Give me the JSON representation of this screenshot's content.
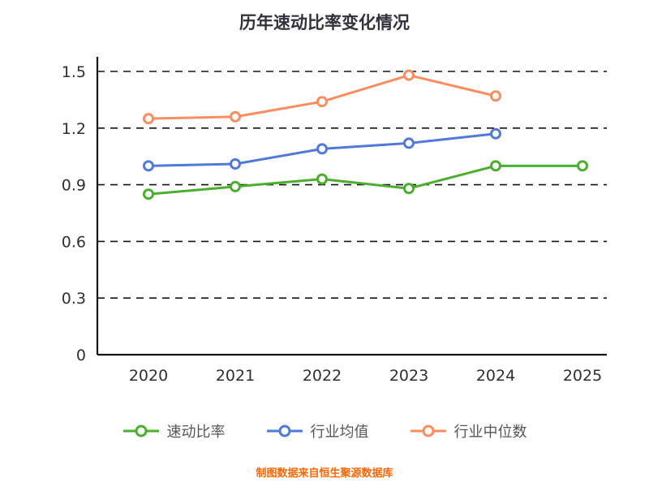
{
  "page": {
    "title": "历年速动比率变化情况",
    "footer": "制图数据来自恒生聚源数据库"
  },
  "chart_data": {
    "type": "line",
    "title": "历年速动比率变化情况",
    "x": [
      2020,
      2021,
      2022,
      2023,
      2024,
      2025
    ],
    "y_ticks": [
      0,
      0.3,
      0.6,
      0.9,
      1.2,
      1.5
    ],
    "ylim": [
      0,
      1.5
    ],
    "grid": "dashed-horizontal",
    "legend_position": "bottom",
    "marker_style": "open-circle",
    "series": [
      {
        "name": "速动比率",
        "color": "#4cae2f",
        "values": [
          0.85,
          0.89,
          0.93,
          0.88,
          1.0,
          1.0
        ]
      },
      {
        "name": "行业均值",
        "color": "#5179d8",
        "values": [
          1.0,
          1.01,
          1.09,
          1.12,
          1.17,
          null
        ]
      },
      {
        "name": "行业中位数",
        "color": "#fb8d61",
        "values": [
          1.25,
          1.26,
          1.34,
          1.48,
          1.37,
          null
        ]
      }
    ],
    "footnote": "制图数据来自恒生聚源数据库"
  }
}
